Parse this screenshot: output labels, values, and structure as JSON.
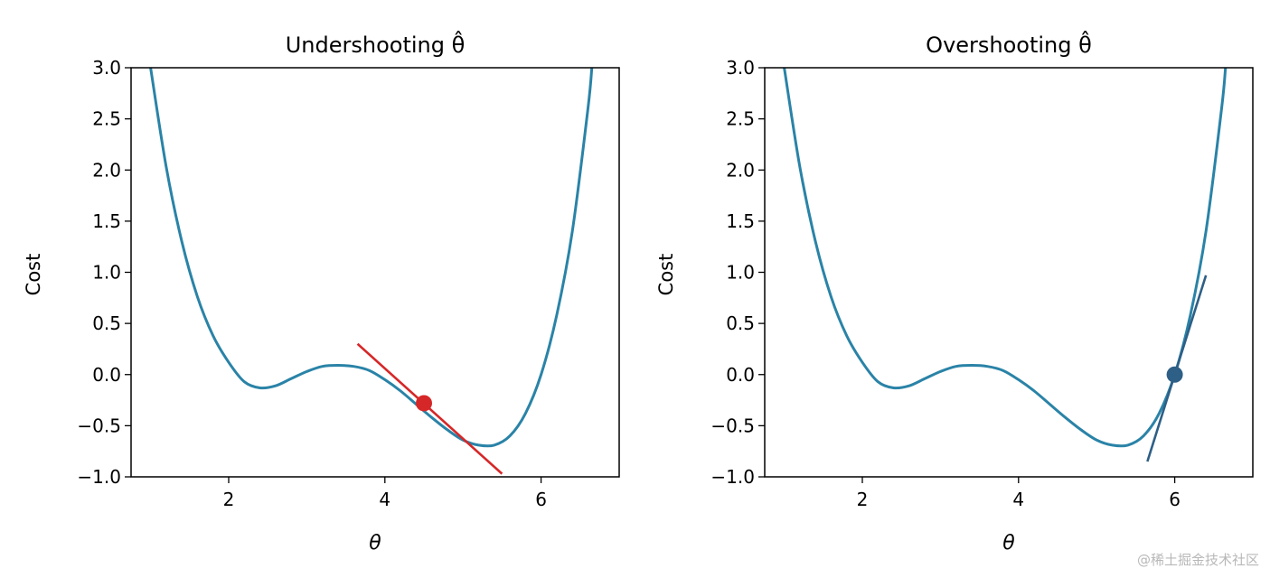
{
  "chart_data": [
    {
      "type": "line",
      "title": "Undershooting θ̂",
      "xlabel": "θ",
      "ylabel": "Cost",
      "xlim": [
        0.75,
        7.0
      ],
      "ylim": [
        -1.0,
        3.0
      ],
      "x_ticks": [
        "2",
        "4",
        "6"
      ],
      "y_ticks": [
        "−1.0",
        "−0.5",
        "0.0",
        "0.5",
        "1.0",
        "1.5",
        "2.0",
        "2.5",
        "3.0"
      ],
      "curve": {
        "x": [
          1.0,
          1.2,
          1.4,
          1.6,
          1.8,
          2.0,
          2.2,
          2.4,
          2.6,
          2.8,
          3.0,
          3.2,
          3.4,
          3.6,
          3.8,
          4.0,
          4.2,
          4.4,
          4.6,
          4.8,
          5.0,
          5.2,
          5.4,
          5.6,
          5.8,
          6.0,
          6.2,
          6.4,
          6.6,
          6.65
        ],
        "y": [
          3.0,
          2.03,
          1.3,
          0.76,
          0.38,
          0.12,
          -0.07,
          -0.13,
          -0.11,
          -0.04,
          0.03,
          0.08,
          0.09,
          0.08,
          0.04,
          -0.05,
          -0.16,
          -0.29,
          -0.42,
          -0.54,
          -0.64,
          -0.69,
          -0.69,
          -0.6,
          -0.38,
          0.0,
          0.58,
          1.4,
          2.6,
          3.0
        ],
        "color": "#2a83a7"
      },
      "point": {
        "x": 4.5,
        "y": -0.28,
        "color": "#d62728"
      },
      "tangent": {
        "x": [
          3.65,
          5.5
        ],
        "y": [
          0.3,
          -0.97
        ],
        "color": "#d62728"
      }
    },
    {
      "type": "line",
      "title": "Overshooting θ̂",
      "xlabel": "θ",
      "ylabel": "Cost",
      "xlim": [
        0.75,
        7.0
      ],
      "ylim": [
        -1.0,
        3.0
      ],
      "x_ticks": [
        "2",
        "4",
        "6"
      ],
      "y_ticks": [
        "−1.0",
        "−0.5",
        "0.0",
        "0.5",
        "1.0",
        "1.5",
        "2.0",
        "2.5",
        "3.0"
      ],
      "curve": {
        "x": [
          1.0,
          1.2,
          1.4,
          1.6,
          1.8,
          2.0,
          2.2,
          2.4,
          2.6,
          2.8,
          3.0,
          3.2,
          3.4,
          3.6,
          3.8,
          4.0,
          4.2,
          4.4,
          4.6,
          4.8,
          5.0,
          5.2,
          5.4,
          5.6,
          5.8,
          6.0,
          6.2,
          6.4,
          6.6,
          6.65
        ],
        "y": [
          3.0,
          2.03,
          1.3,
          0.76,
          0.38,
          0.12,
          -0.07,
          -0.13,
          -0.11,
          -0.04,
          0.03,
          0.08,
          0.09,
          0.08,
          0.04,
          -0.05,
          -0.16,
          -0.29,
          -0.42,
          -0.54,
          -0.64,
          -0.69,
          -0.69,
          -0.6,
          -0.38,
          0.0,
          0.58,
          1.4,
          2.6,
          3.0
        ],
        "color": "#2a83a7"
      },
      "point": {
        "x": 6.0,
        "y": 0.0,
        "color": "#2e5f86"
      },
      "tangent": {
        "x": [
          5.65,
          6.4
        ],
        "y": [
          -0.85,
          0.97
        ],
        "color": "#2e5f86"
      }
    }
  ],
  "watermark": "@稀土掘金技术社区"
}
